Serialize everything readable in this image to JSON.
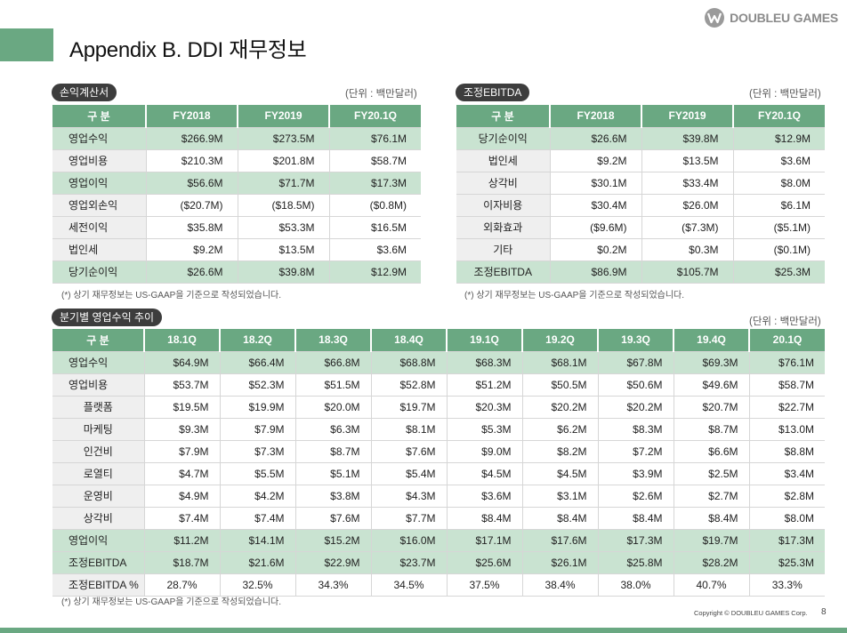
{
  "header": {
    "title": "Appendix B. DDI 재무정보",
    "logo_text": "DOUBLEU GAMES",
    "logo_icon": "doubleu-w-icon"
  },
  "income": {
    "pill": "손익계산서",
    "unit": "(단위 : 백만달러)",
    "columns": [
      "구 분",
      "FY2018",
      "FY2019",
      "FY20.1Q"
    ],
    "rows": [
      {
        "label": "영업수익",
        "values": [
          "$266.9M",
          "$273.5M",
          "$76.1M"
        ]
      },
      {
        "label": "영업비용",
        "values": [
          "$210.3M",
          "$201.8M",
          "$58.7M"
        ]
      },
      {
        "label": "영업이익",
        "values": [
          "$56.6M",
          "$71.7M",
          "$17.3M"
        ]
      },
      {
        "label": "영업외손익",
        "values": [
          "($20.7M)",
          "($18.5M)",
          "($0.8M)"
        ]
      },
      {
        "label": "세전이익",
        "values": [
          "$35.8M",
          "$53.3M",
          "$16.5M"
        ]
      },
      {
        "label": "법인세",
        "values": [
          "$9.2M",
          "$13.5M",
          "$3.6M"
        ]
      },
      {
        "label": "당기순이익",
        "values": [
          "$26.6M",
          "$39.8M",
          "$12.9M"
        ]
      }
    ],
    "note": "(*) 상기 재무정보는 US-GAAP을 기준으로 작성되었습니다."
  },
  "ebitda": {
    "pill": "조정EBITDA",
    "unit": "(단위 : 백만달러)",
    "columns": [
      "구 분",
      "FY2018",
      "FY2019",
      "FY20.1Q"
    ],
    "rows": [
      {
        "label": "당기순이익",
        "values": [
          "$26.6M",
          "$39.8M",
          "$12.9M"
        ]
      },
      {
        "label": "법인세",
        "values": [
          "$9.2M",
          "$13.5M",
          "$3.6M"
        ]
      },
      {
        "label": "상각비",
        "values": [
          "$30.1M",
          "$33.4M",
          "$8.0M"
        ]
      },
      {
        "label": "이자비용",
        "values": [
          "$30.4M",
          "$26.0M",
          "$6.1M"
        ]
      },
      {
        "label": "외화효과",
        "values": [
          "($9.6M)",
          "($7.3M)",
          "($5.1M)"
        ]
      },
      {
        "label": "기타",
        "values": [
          "$0.2M",
          "$0.3M",
          "($0.1M)"
        ]
      },
      {
        "label": "조정EBITDA",
        "values": [
          "$86.9M",
          "$105.7M",
          "$25.3M"
        ]
      }
    ],
    "note": "(*) 상기 재무정보는 US-GAAP을 기준으로 작성되었습니다."
  },
  "quarterly": {
    "pill": "분기별 영업수익 추이",
    "unit": "(단위 : 백만달러)",
    "columns": [
      "구 분",
      "18.1Q",
      "18.2Q",
      "18.3Q",
      "18.4Q",
      "19.1Q",
      "19.2Q",
      "19.3Q",
      "19.4Q",
      "20.1Q"
    ],
    "rows": [
      {
        "label": "영업수익",
        "values": [
          "$64.9M",
          "$66.4M",
          "$66.8M",
          "$68.8M",
          "$68.3M",
          "$68.1M",
          "$67.8M",
          "$69.3M",
          "$76.1M"
        ]
      },
      {
        "label": "영업비용",
        "values": [
          "$53.7M",
          "$52.3M",
          "$51.5M",
          "$52.8M",
          "$51.2M",
          "$50.5M",
          "$50.6M",
          "$49.6M",
          "$58.7M"
        ]
      },
      {
        "label": "플랫폼",
        "values": [
          "$19.5M",
          "$19.9M",
          "$20.0M",
          "$19.7M",
          "$20.3M",
          "$20.2M",
          "$20.2M",
          "$20.7M",
          "$22.7M"
        ]
      },
      {
        "label": "마케팅",
        "values": [
          "$9.3M",
          "$7.9M",
          "$6.3M",
          "$8.1M",
          "$5.3M",
          "$6.2M",
          "$8.3M",
          "$8.7M",
          "$13.0M"
        ]
      },
      {
        "label": "인건비",
        "values": [
          "$7.9M",
          "$7.3M",
          "$8.7M",
          "$7.6M",
          "$9.0M",
          "$8.2M",
          "$7.2M",
          "$6.6M",
          "$8.8M"
        ]
      },
      {
        "label": "로열티",
        "values": [
          "$4.7M",
          "$5.5M",
          "$5.1M",
          "$5.4M",
          "$4.5M",
          "$4.5M",
          "$3.9M",
          "$2.5M",
          "$3.4M"
        ]
      },
      {
        "label": "운영비",
        "values": [
          "$4.9M",
          "$4.2M",
          "$3.8M",
          "$4.3M",
          "$3.6M",
          "$3.1M",
          "$2.6M",
          "$2.7M",
          "$2.8M"
        ]
      },
      {
        "label": "상각비",
        "values": [
          "$7.4M",
          "$7.4M",
          "$7.6M",
          "$7.7M",
          "$8.4M",
          "$8.4M",
          "$8.4M",
          "$8.4M",
          "$8.0M"
        ]
      },
      {
        "label": "영업이익",
        "values": [
          "$11.2M",
          "$14.1M",
          "$15.2M",
          "$16.0M",
          "$17.1M",
          "$17.6M",
          "$17.3M",
          "$19.7M",
          "$17.3M"
        ]
      },
      {
        "label": "조정EBITDA",
        "values": [
          "$18.7M",
          "$21.6M",
          "$22.9M",
          "$23.7M",
          "$25.6M",
          "$26.1M",
          "$25.8M",
          "$28.2M",
          "$25.3M"
        ]
      },
      {
        "label": "조정EBITDA %",
        "values": [
          "28.7%",
          "32.5%",
          "34.3%",
          "34.5%",
          "37.5%",
          "38.4%",
          "38.0%",
          "40.7%",
          "33.3%"
        ]
      }
    ],
    "note": "(*) 상기 재무정보는 US-GAAP을 기준으로 작성되었습니다."
  },
  "footer": {
    "copyright": "Copyright © DOUBLEU GAMES Corp.",
    "page": "8"
  }
}
